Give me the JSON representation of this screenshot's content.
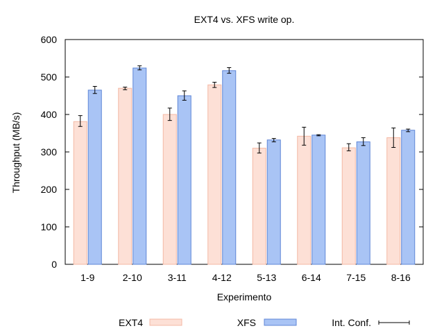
{
  "chart_data": {
    "type": "bar",
    "title": "EXT4 vs. XFS write op.",
    "xlabel": "Experimento",
    "ylabel": "Throughput (MB/s)",
    "ylim": [
      0,
      600
    ],
    "yticks": [
      0,
      100,
      200,
      300,
      400,
      500,
      600
    ],
    "grid": false,
    "legend_position": "bottom",
    "categories": [
      "1-9",
      "2-10",
      "3-11",
      "4-12",
      "5-13",
      "6-14",
      "7-15",
      "8-16"
    ],
    "series": [
      {
        "name": "EXT4",
        "color": "#fde0d6",
        "stroke": "#f4b8a4",
        "values": [
          381,
          470,
          400,
          479,
          310,
          342,
          311,
          338
        ],
        "ci_low": [
          368,
          466,
          384,
          472,
          297,
          318,
          303,
          312
        ],
        "ci_high": [
          397,
          473,
          417,
          486,
          324,
          366,
          322,
          364
        ]
      },
      {
        "name": "XFS",
        "color": "#a9c4f5",
        "stroke": "#5f86d6",
        "values": [
          465,
          524,
          450,
          517,
          332,
          345,
          327,
          358
        ],
        "ci_low": [
          456,
          519,
          438,
          510,
          327,
          343,
          317,
          354
        ],
        "ci_high": [
          475,
          530,
          463,
          525,
          336,
          346,
          338,
          361
        ]
      }
    ],
    "ci_legend_label": "Int. Conf."
  }
}
